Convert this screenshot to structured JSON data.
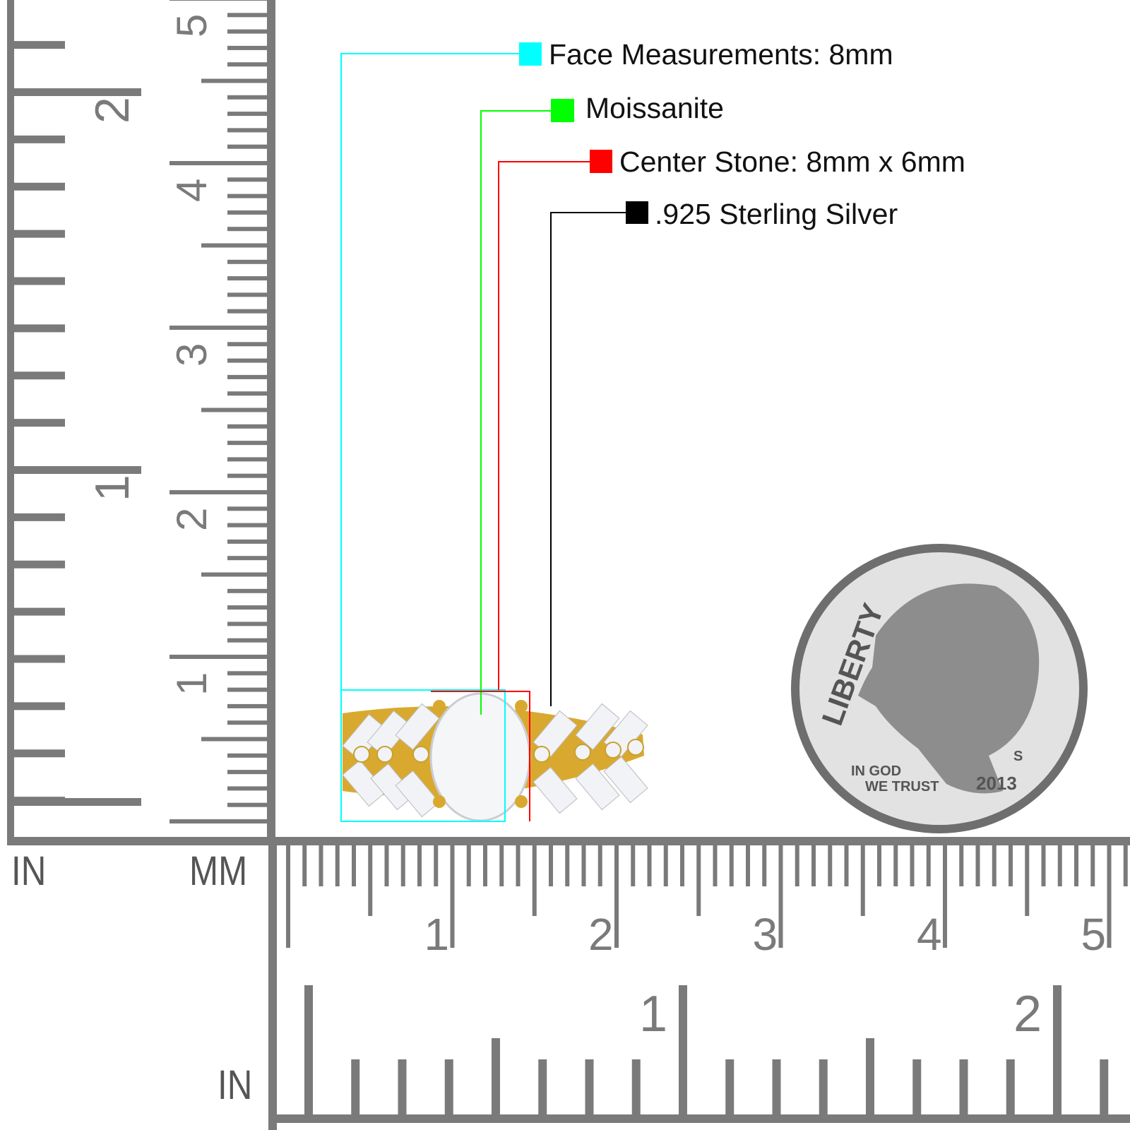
{
  "annotations": [
    {
      "label": "Face Measurements: 8mm",
      "color": "#00ffff"
    },
    {
      "label": "Moissanite",
      "color": "#00ff00"
    },
    {
      "label": "Center Stone: 8mm x 6mm",
      "color": "#ff0000"
    },
    {
      "label": ".925 Sterling Silver",
      "color": "#000000"
    }
  ],
  "rulers": {
    "left_inch_unit": "IN",
    "left_mm_unit": "MM",
    "bottom_inch_unit": "IN",
    "vertical_inch_labels": [
      "1",
      "2"
    ],
    "vertical_cm_labels": [
      "1",
      "2",
      "3",
      "4",
      "5"
    ],
    "horizontal_cm_labels": [
      "1",
      "2",
      "3",
      "4",
      "5"
    ],
    "horizontal_inch_labels": [
      "1",
      "2"
    ],
    "color": "#7a7a7a"
  },
  "coin": {
    "legend": "LIBERTY",
    "motto_line1": "IN GOD",
    "motto_line2": "WE TRUST",
    "year": "2013",
    "mint_mark": "S"
  },
  "ring": {
    "metal_color": "#d9a92f",
    "stone_color": "#f1f3f6"
  }
}
